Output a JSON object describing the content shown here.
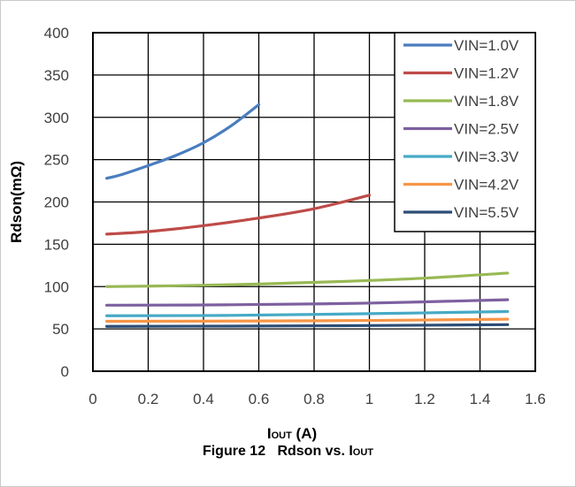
{
  "chart_data": {
    "type": "line",
    "title": "",
    "xlabel": {
      "main": "I",
      "sub": "OUT",
      "suffix": " (A)"
    },
    "ylabel": "Rdson(mΩ)",
    "xlim": [
      0,
      1.6
    ],
    "ylim": [
      0,
      400
    ],
    "xticks": [
      "0",
      "0.2",
      "0.4",
      "0.6",
      "0.8",
      "1",
      "1.2",
      "1.4",
      "1.6"
    ],
    "yticks": [
      "0",
      "50",
      "100",
      "150",
      "200",
      "250",
      "300",
      "350",
      "400"
    ],
    "grid": true,
    "legend_position": "top-right",
    "series": [
      {
        "name": "VIN=1.0V",
        "color": "#4a7dbf",
        "x": [
          0.05,
          0.1,
          0.2,
          0.3,
          0.4,
          0.5,
          0.6
        ],
        "y": [
          228,
          232,
          243,
          255,
          270,
          290,
          315
        ]
      },
      {
        "name": "VIN=1.2V",
        "color": "#be4b48",
        "x": [
          0.05,
          0.2,
          0.4,
          0.6,
          0.8,
          1.0
        ],
        "y": [
          162,
          165,
          172,
          181,
          192,
          208
        ]
      },
      {
        "name": "VIN=1.8V",
        "color": "#98b954",
        "x": [
          0.05,
          0.3,
          0.6,
          0.9,
          1.2,
          1.5
        ],
        "y": [
          100,
          101,
          103,
          106,
          110,
          116
        ]
      },
      {
        "name": "VIN=2.5V",
        "color": "#7d60a0",
        "x": [
          0.05,
          0.5,
          1.0,
          1.5
        ],
        "y": [
          78,
          78.5,
          80.5,
          84.5
        ]
      },
      {
        "name": "VIN=3.3V",
        "color": "#46aac5",
        "x": [
          0.05,
          0.5,
          1.0,
          1.5
        ],
        "y": [
          65.5,
          66,
          68,
          70.5
        ]
      },
      {
        "name": "VIN=4.2V",
        "color": "#f79646",
        "x": [
          0.05,
          0.5,
          1.0,
          1.5
        ],
        "y": [
          59,
          59.3,
          60,
          61.5
        ]
      },
      {
        "name": "VIN=5.5V",
        "color": "#2c4d75",
        "x": [
          0.05,
          0.5,
          1.0,
          1.5
        ],
        "y": [
          53,
          53.3,
          54,
          55
        ]
      }
    ]
  },
  "caption": {
    "label": "Figure 12",
    "text": "Rdson vs. I",
    "sub": "OUT"
  }
}
